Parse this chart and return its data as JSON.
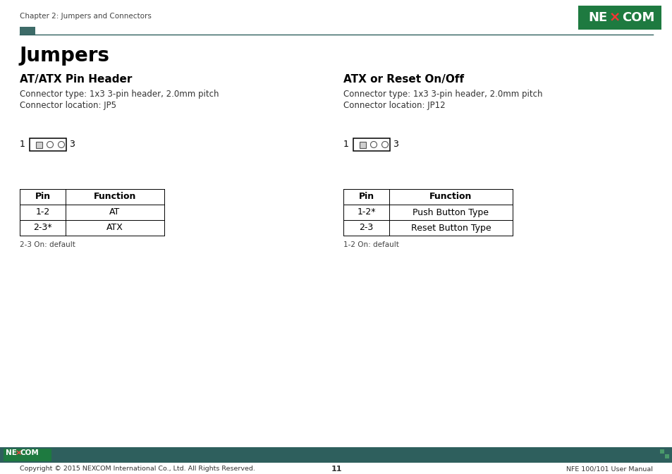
{
  "page_title": "Chapter 2: Jumpers and Connectors",
  "main_heading": "Jumpers",
  "left_section_title": "AT/ATX Pin Header",
  "left_connector_type": "Connector type: 1x3 3-pin header, 2.0mm pitch",
  "left_connector_loc": "Connector location: JP5",
  "left_table_headers": [
    "Pin",
    "Function"
  ],
  "left_table_rows": [
    [
      "1-2",
      "AT"
    ],
    [
      "2-3*",
      "ATX"
    ]
  ],
  "left_table_note": "2-3 On: default",
  "right_section_title": "ATX or Reset On/Off",
  "right_connector_type": "Connector type: 1x3 3-pin header, 2.0mm pitch",
  "right_connector_loc": "Connector location: JP12",
  "right_table_headers": [
    "Pin",
    "Function"
  ],
  "right_table_rows": [
    [
      "1-2*",
      "Push Button Type"
    ],
    [
      "2-3",
      "Reset Button Type"
    ]
  ],
  "right_table_note": "1-2 On: default",
  "footer_copyright": "Copyright © 2015 NEXCOM International Co., Ltd. All Rights Reserved.",
  "footer_page": "11",
  "footer_manual": "NFE 100/101 User Manual",
  "header_bar_color": "#2e5f5d",
  "nexcom_bg_color": "#1e7a40",
  "footer_bar_color": "#2e5f5d",
  "title_bar_color": "#3d6b68"
}
